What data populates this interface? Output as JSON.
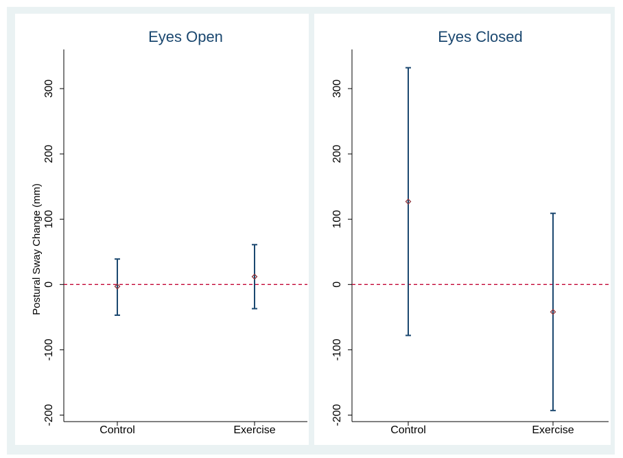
{
  "colors": {
    "background": "#eaf2f3",
    "panel": "#ffffff",
    "title": "#1a476f",
    "error_bar": "#1a476f",
    "marker": "#90353b",
    "reference_line": "#c10534"
  },
  "chart_data": [
    {
      "type": "errorbar",
      "title": "Eyes Open",
      "xlabel": "",
      "ylabel": "Postural Sway Change (mm)",
      "categories": [
        "Control",
        "Exercise"
      ],
      "estimates": [
        -3,
        12
      ],
      "lower": [
        -47,
        -37
      ],
      "upper": [
        39,
        61
      ],
      "ylim": [
        -210,
        360
      ],
      "yticks": [
        -200,
        -100,
        0,
        100,
        200,
        300
      ],
      "ytick_labels": [
        "-200",
        "-100",
        "0",
        "100",
        "200",
        "300"
      ],
      "reference_line": 0,
      "grid": false,
      "marker": "diamond"
    },
    {
      "type": "errorbar",
      "title": "Eyes Closed",
      "xlabel": "",
      "ylabel": "",
      "categories": [
        "Control",
        "Exercise"
      ],
      "estimates": [
        127,
        -42
      ],
      "lower": [
        -78,
        -193
      ],
      "upper": [
        332,
        109
      ],
      "ylim": [
        -210,
        360
      ],
      "yticks": [
        -200,
        -100,
        0,
        100,
        200,
        300
      ],
      "ytick_labels": [
        "-200",
        "-100",
        "0",
        "100",
        "200",
        "300"
      ],
      "reference_line": 0,
      "grid": false,
      "marker": "diamond"
    }
  ]
}
